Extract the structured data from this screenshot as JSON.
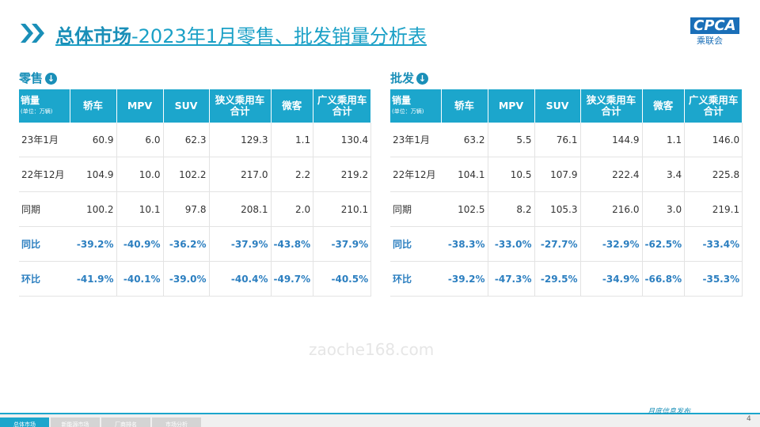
{
  "header": {
    "title_bold": "总体市场",
    "title_rest": "-2023年1月零售、批发销量分析表",
    "logo_en": "CPCA",
    "logo_cn": "乘联会"
  },
  "tables": [
    {
      "title": "零售",
      "unit_label": "销量",
      "unit_note": "(单位：万辆)",
      "columns": [
        "轿车",
        "MPV",
        "SUV",
        "狭义乘用车合计",
        "微客",
        "广义乘用车合计"
      ],
      "rows": [
        {
          "label": "23年1月",
          "cells": [
            "60.9",
            "6.0",
            "62.3",
            "129.3",
            "1.1",
            "130.4"
          ]
        },
        {
          "label": "22年12月",
          "cells": [
            "104.9",
            "10.0",
            "102.2",
            "217.0",
            "2.2",
            "219.2"
          ]
        },
        {
          "label": "同期",
          "cells": [
            "100.2",
            "10.1",
            "97.8",
            "208.1",
            "2.0",
            "210.1"
          ]
        },
        {
          "label": "同比",
          "cells": [
            "-39.2%",
            "-40.9%",
            "-36.2%",
            "-37.9%",
            "-43.8%",
            "-37.9%"
          ]
        },
        {
          "label": "环比",
          "cells": [
            "-41.9%",
            "-40.1%",
            "-39.0%",
            "-40.4%",
            "-49.7%",
            "-40.5%"
          ]
        }
      ]
    },
    {
      "title": "批发",
      "unit_label": "销量",
      "unit_note": "(单位：万辆)",
      "columns": [
        "轿车",
        "MPV",
        "SUV",
        "狭义乘用车合计",
        "微客",
        "广义乘用车合计"
      ],
      "rows": [
        {
          "label": "23年1月",
          "cells": [
            "63.2",
            "5.5",
            "76.1",
            "144.9",
            "1.1",
            "146.0"
          ]
        },
        {
          "label": "22年12月",
          "cells": [
            "104.1",
            "10.5",
            "107.9",
            "222.4",
            "3.4",
            "225.8"
          ]
        },
        {
          "label": "同期",
          "cells": [
            "102.5",
            "8.2",
            "105.3",
            "216.0",
            "3.0",
            "219.1"
          ]
        },
        {
          "label": "同比",
          "cells": [
            "-38.3%",
            "-33.0%",
            "-27.7%",
            "-32.9%",
            "-62.5%",
            "-33.4%"
          ]
        },
        {
          "label": "环比",
          "cells": [
            "-39.2%",
            "-47.3%",
            "-29.5%",
            "-34.9%",
            "-66.8%",
            "-35.3%"
          ]
        }
      ]
    }
  ],
  "watermark": "zaoche168.com",
  "footer": {
    "tabs": [
      "总体市场",
      "新能源市场",
      "厂商排名",
      "市场分析"
    ],
    "release": "月度信息发布",
    "page": "4"
  }
}
